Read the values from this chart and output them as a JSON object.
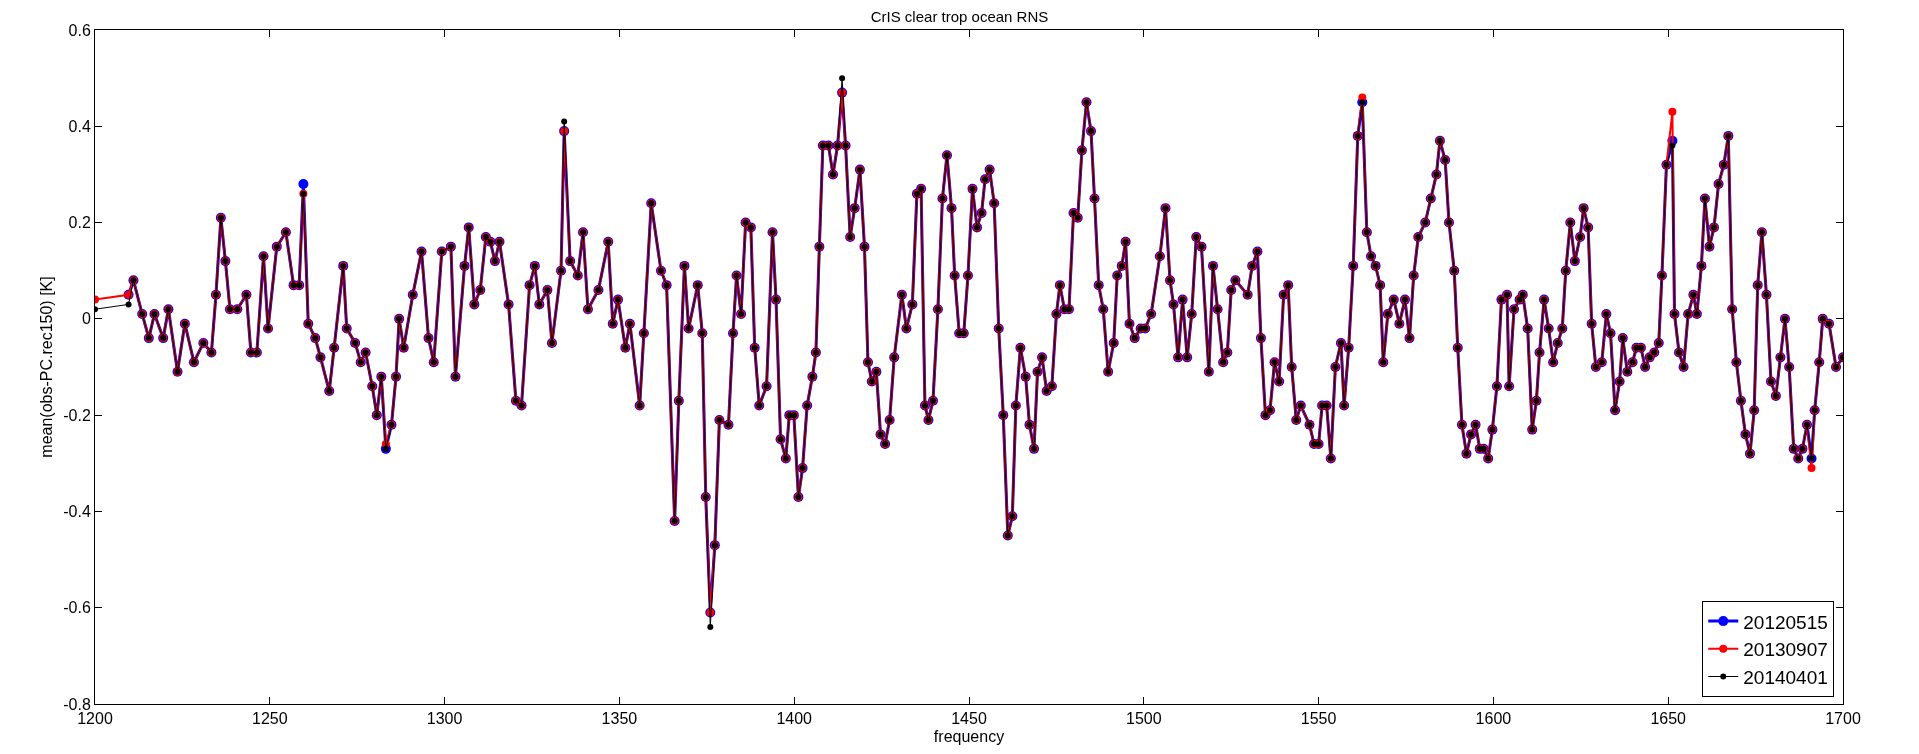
{
  "chart_data": {
    "type": "line",
    "title": "CrIS clear trop ocean RNS",
    "xlabel": "frequency",
    "ylabel": "mean(obs-PC.rec150) [K]",
    "xlim": [
      1200,
      1700
    ],
    "xticks": [
      1200,
      1250,
      1300,
      1350,
      1400,
      1450,
      1500,
      1550,
      1600,
      1650,
      1700
    ],
    "ylim": [
      -0.8,
      0.6
    ],
    "yticks": [
      -0.8,
      -0.6,
      -0.4,
      -0.2,
      0,
      0.2,
      0.4,
      0.6
    ],
    "grid": false,
    "legend": "bottom right",
    "marker": "circle",
    "line_style": "solid",
    "x": [
      1200,
      1209.6,
      1211,
      1213.5,
      1215.4,
      1217,
      1219.5,
      1221,
      1223.6,
      1225.7,
      1228.3,
      1231,
      1233.3,
      1234.6,
      1236,
      1237.3,
      1238.6,
      1240.7,
      1243.3,
      1244.6,
      1246.3,
      1248.2,
      1249.5,
      1252,
      1254.6,
      1256.8,
      1258.4,
      1259.6,
      1261,
      1263,
      1264.5,
      1267,
      1268.4,
      1271,
      1272,
      1274.4,
      1276,
      1277.4,
      1279.3,
      1280.6,
      1281.9,
      1283.2,
      1284.8,
      1286.1,
      1287,
      1288.3,
      1290.9,
      1293.4,
      1295.4,
      1296.9,
      1299.2,
      1301.8,
      1303.1,
      1305.7,
      1306.9,
      1308.5,
      1310.2,
      1311.8,
      1313.1,
      1314.4,
      1315.7,
      1318.3,
      1320.4,
      1322,
      1324.3,
      1325.8,
      1327.1,
      1329.4,
      1330.7,
      1333.3,
      1334.2,
      1335.9,
      1338.1,
      1339.6,
      1341,
      1344,
      1346.8,
      1348.1,
      1349.6,
      1351.7,
      1353,
      1355.8,
      1357,
      1359.1,
      1361.9,
      1363.5,
      1365.8,
      1367,
      1368.6,
      1369.8,
      1372.4,
      1373.7,
      1374.7,
      1376,
      1377.3,
      1378.6,
      1381.2,
      1382.5,
      1383.5,
      1384.8,
      1386.1,
      1387.6,
      1388.7,
      1390,
      1392.1,
      1393.8,
      1394.8,
      1396.1,
      1397.6,
      1398.6,
      1399.9,
      1401.2,
      1402.4,
      1403.7,
      1405.2,
      1406.2,
      1407.2,
      1408.2,
      1409.8,
      1411.1,
      1412.4,
      1413.7,
      1414.7,
      1416,
      1417.3,
      1418.8,
      1420.1,
      1421.1,
      1422.2,
      1423.5,
      1424.7,
      1426,
      1427.3,
      1428.6,
      1430.8,
      1432.1,
      1433.8,
      1435.1,
      1436.3,
      1437.4,
      1438.4,
      1439.7,
      1441.1,
      1442.4,
      1443.7,
      1445,
      1445.9,
      1447.2,
      1448.5,
      1449.7,
      1451,
      1452.3,
      1453.6,
      1454.6,
      1455.9,
      1457.2,
      1458.5,
      1459.8,
      1461.1,
      1462.4,
      1463.4,
      1464.7,
      1466.2,
      1467.3,
      1468.6,
      1469.6,
      1470.9,
      1472.2,
      1473.7,
      1475,
      1476,
      1477.3,
      1478.6,
      1479.9,
      1481.1,
      1482.3,
      1483.6,
      1484.9,
      1485.9,
      1487.1,
      1488.4,
      1489.8,
      1491.4,
      1492.4,
      1493.7,
      1494.8,
      1495.9,
      1497.4,
      1499.1,
      1500.4,
      1502.1,
      1504.6,
      1506.2,
      1507.5,
      1508.5,
      1509.8,
      1511.1,
      1512.4,
      1513.7,
      1515,
      1516.5,
      1518.6,
      1519.8,
      1521.1,
      1522.7,
      1523.9,
      1525,
      1526.2,
      1529.7,
      1531,
      1532.5,
      1533.5,
      1534.8,
      1536.1,
      1537.4,
      1538.7,
      1540,
      1541.3,
      1542.3,
      1543.6,
      1544.9,
      1547.4,
      1548.7,
      1550,
      1551,
      1552.3,
      1553.5,
      1554.8,
      1556.4,
      1557.3,
      1558.6,
      1559.9,
      1561.2,
      1562.5,
      1563.8,
      1565,
      1566.3,
      1567.6,
      1568.5,
      1569.8,
      1571.5,
      1573.1,
      1574.7,
      1576,
      1577.2,
      1578.5,
      1580.5,
      1582.1,
      1583.7,
      1584.7,
      1586.2,
      1587.3,
      1588.8,
      1589.8,
      1591,
      1592.3,
      1593.6,
      1594.9,
      1596.1,
      1597.2,
      1598.5,
      1599.7,
      1601,
      1602.3,
      1603.9,
      1604.5,
      1605.9,
      1607.5,
      1608.4,
      1609.8,
      1611.1,
      1612.3,
      1613.2,
      1614.5,
      1615.8,
      1617.1,
      1618.4,
      1619.7,
      1620.7,
      1622,
      1623.3,
      1624.8,
      1625.8,
      1627.1,
      1628.1,
      1629.3,
      1631,
      1632.3,
      1633.5,
      1634.8,
      1636.1,
      1637,
      1638.3,
      1639.8,
      1640.9,
      1642.2,
      1643.4,
      1644.7,
      1646,
      1647.3,
      1648.2,
      1649.5,
      1651.2,
      1651.8,
      1653.1,
      1654.4,
      1655.7,
      1657.2,
      1658.2,
      1659.5,
      1660.5,
      1661.8,
      1663.1,
      1664.4,
      1665.9,
      1667.2,
      1668.3,
      1669.5,
      1670.8,
      1672.1,
      1673.4,
      1674.6,
      1675.6,
      1676.8,
      1678.1,
      1679.4,
      1680.8,
      1682.1,
      1683.4,
      1684.6,
      1685.9,
      1687.2,
      1688.4,
      1689.7,
      1691,
      1691.9,
      1693.2,
      1694.2,
      1696,
      1698,
      1700
    ],
    "series": [
      {
        "name": "20120515",
        "color": "#0000ff",
        "values": [
          null,
          0.05,
          0.08,
          0.01,
          -0.04,
          0.01,
          -0.04,
          0.02,
          -0.11,
          -0.01,
          -0.09,
          -0.05,
          -0.07,
          0.05,
          0.21,
          0.12,
          0.02,
          0.02,
          0.05,
          -0.07,
          -0.07,
          0.13,
          -0.02,
          0.15,
          0.18,
          0.07,
          0.07,
          0.28,
          -0.01,
          -0.04,
          -0.08,
          -0.15,
          -0.06,
          0.11,
          -0.02,
          -0.05,
          -0.09,
          -0.07,
          -0.14,
          -0.2,
          -0.12,
          -0.27,
          -0.22,
          -0.12,
          0.0,
          -0.06,
          0.05,
          0.14,
          -0.04,
          -0.09,
          0.14,
          0.15,
          -0.12,
          0.11,
          0.19,
          0.03,
          0.06,
          0.17,
          0.16,
          0.12,
          0.16,
          0.03,
          -0.17,
          -0.18,
          0.07,
          0.11,
          0.03,
          0.06,
          -0.05,
          0.1,
          0.39,
          0.12,
          0.09,
          0.18,
          0.02,
          0.06,
          0.16,
          -0.01,
          0.04,
          -0.06,
          -0.01,
          -0.18,
          -0.03,
          0.24,
          0.1,
          0.07,
          -0.42,
          -0.17,
          0.11,
          -0.02,
          0.07,
          -0.03,
          -0.37,
          -0.61,
          -0.47,
          -0.21,
          -0.22,
          -0.03,
          0.09,
          0.01,
          0.2,
          0.19,
          -0.06,
          -0.18,
          -0.14,
          0.18,
          0.04,
          -0.25,
          -0.29,
          -0.2,
          -0.2,
          -0.37,
          -0.31,
          -0.18,
          -0.12,
          -0.07,
          0.15,
          0.36,
          0.36,
          0.3,
          0.36,
          0.47,
          0.36,
          0.17,
          0.23,
          0.31,
          0.15,
          -0.09,
          -0.13,
          -0.11,
          -0.24,
          -0.26,
          -0.21,
          -0.08,
          0.05,
          -0.02,
          0.03,
          0.26,
          0.27,
          -0.18,
          -0.21,
          -0.17,
          0.02,
          0.25,
          0.34,
          0.23,
          0.09,
          -0.03,
          -0.03,
          0.09,
          0.27,
          0.19,
          0.22,
          0.29,
          0.31,
          0.24,
          -0.02,
          -0.2,
          -0.45,
          -0.41,
          -0.18,
          -0.06,
          -0.12,
          -0.22,
          -0.27,
          -0.11,
          -0.08,
          -0.15,
          -0.14,
          0.01,
          0.07,
          0.02,
          0.02,
          0.22,
          0.21,
          0.35,
          0.45,
          0.39,
          0.25,
          0.07,
          0.02,
          -0.11,
          -0.05,
          0.09,
          0.11,
          0.16,
          -0.01,
          -0.04,
          -0.02,
          -0.02,
          0.01,
          0.13,
          0.23,
          0.08,
          0.03,
          -0.08,
          0.04,
          -0.08,
          0.01,
          0.17,
          0.15,
          -0.11,
          0.11,
          0.02,
          -0.09,
          -0.07,
          0.06,
          0.08,
          0.05,
          0.11,
          0.14,
          -0.04,
          -0.2,
          -0.19,
          -0.09,
          -0.13,
          0.05,
          0.07,
          -0.1,
          -0.21,
          -0.18,
          -0.22,
          -0.26,
          -0.26,
          -0.18,
          -0.18,
          -0.29,
          -0.1,
          -0.05,
          -0.18,
          -0.06,
          0.11,
          0.38,
          0.45,
          0.18,
          0.13,
          0.11,
          0.07,
          -0.09,
          0.01,
          0.04,
          -0.01,
          0.04,
          -0.04,
          0.09,
          0.17,
          0.2,
          0.25,
          0.3,
          0.37,
          0.33,
          0.2,
          0.1,
          -0.06,
          -0.22,
          -0.28,
          -0.24,
          -0.22,
          -0.27,
          -0.27,
          -0.29,
          -0.23,
          -0.14,
          0.04,
          0.05,
          -0.14,
          0.02,
          0.04,
          0.05,
          -0.02,
          -0.23,
          -0.17,
          -0.07,
          0.04,
          -0.02,
          -0.09,
          -0.05,
          -0.02,
          0.1,
          0.2,
          0.12,
          0.17,
          0.23,
          0.19,
          -0.01,
          -0.1,
          -0.09,
          0.01,
          -0.03,
          -0.19,
          -0.13,
          -0.04,
          -0.11,
          -0.09,
          -0.06,
          -0.06,
          -0.1,
          -0.08,
          -0.07,
          -0.05,
          0.09,
          0.32,
          0.37,
          0.01,
          -0.07,
          -0.1,
          0.01,
          0.05,
          0.01,
          0.11,
          0.25,
          0.15,
          0.19,
          0.28,
          0.32,
          0.38,
          0.02,
          -0.09,
          -0.17,
          -0.24,
          -0.28,
          -0.19,
          0.07,
          0.18,
          0.05,
          -0.13,
          -0.16,
          -0.08,
          0.0,
          -0.1,
          -0.27,
          -0.29,
          -0.27,
          -0.22,
          -0.29,
          -0.19,
          -0.09,
          0.0,
          -0.01,
          -0.1,
          -0.08
        ]
      },
      {
        "name": "20130907",
        "color": "#ff0000",
        "values": [
          0.04,
          0.05,
          0.08,
          0.01,
          -0.04,
          0.01,
          -0.04,
          0.02,
          -0.11,
          -0.01,
          -0.09,
          -0.05,
          -0.07,
          0.05,
          0.21,
          0.12,
          0.02,
          0.02,
          0.05,
          -0.07,
          -0.07,
          0.13,
          -0.02,
          0.15,
          0.18,
          0.07,
          0.07,
          0.26,
          -0.01,
          -0.04,
          -0.08,
          -0.15,
          -0.06,
          0.11,
          -0.02,
          -0.05,
          -0.09,
          -0.07,
          -0.14,
          -0.2,
          -0.12,
          -0.26,
          -0.22,
          -0.12,
          0.0,
          -0.06,
          0.05,
          0.14,
          -0.04,
          -0.09,
          0.14,
          0.15,
          -0.12,
          0.11,
          0.19,
          0.03,
          0.06,
          0.17,
          0.16,
          0.12,
          0.16,
          0.03,
          -0.17,
          -0.18,
          0.07,
          0.11,
          0.03,
          0.06,
          -0.05,
          0.1,
          0.39,
          0.12,
          0.09,
          0.18,
          0.02,
          0.06,
          0.16,
          -0.01,
          0.04,
          -0.06,
          -0.01,
          -0.18,
          -0.03,
          0.24,
          0.1,
          0.07,
          -0.42,
          -0.17,
          0.11,
          -0.02,
          0.07,
          -0.03,
          -0.37,
          -0.61,
          -0.47,
          -0.21,
          -0.22,
          -0.03,
          0.09,
          0.01,
          0.2,
          0.19,
          -0.06,
          -0.18,
          -0.14,
          0.18,
          0.04,
          -0.25,
          -0.29,
          -0.2,
          -0.2,
          -0.37,
          -0.31,
          -0.18,
          -0.12,
          -0.07,
          0.15,
          0.36,
          0.36,
          0.3,
          0.36,
          0.47,
          0.36,
          0.17,
          0.23,
          0.31,
          0.15,
          -0.09,
          -0.13,
          -0.11,
          -0.24,
          -0.26,
          -0.21,
          -0.08,
          0.05,
          -0.02,
          0.03,
          0.26,
          0.27,
          -0.18,
          -0.21,
          -0.17,
          0.02,
          0.25,
          0.34,
          0.23,
          0.09,
          -0.03,
          -0.03,
          0.09,
          0.27,
          0.19,
          0.22,
          0.29,
          0.31,
          0.24,
          -0.02,
          -0.2,
          -0.45,
          -0.41,
          -0.18,
          -0.06,
          -0.12,
          -0.22,
          -0.27,
          -0.11,
          -0.08,
          -0.15,
          -0.14,
          0.01,
          0.07,
          0.02,
          0.02,
          0.22,
          0.21,
          0.35,
          0.45,
          0.39,
          0.25,
          0.07,
          0.02,
          -0.11,
          -0.05,
          0.09,
          0.11,
          0.16,
          -0.01,
          -0.04,
          -0.02,
          -0.02,
          0.01,
          0.13,
          0.23,
          0.08,
          0.03,
          -0.08,
          0.04,
          -0.08,
          0.01,
          0.17,
          0.15,
          -0.11,
          0.11,
          0.02,
          -0.09,
          -0.07,
          0.06,
          0.08,
          0.05,
          0.11,
          0.14,
          -0.04,
          -0.2,
          -0.19,
          -0.09,
          -0.13,
          0.05,
          0.07,
          -0.1,
          -0.21,
          -0.18,
          -0.22,
          -0.26,
          -0.26,
          -0.18,
          -0.18,
          -0.29,
          -0.1,
          -0.05,
          -0.18,
          -0.06,
          0.11,
          0.38,
          0.46,
          0.18,
          0.13,
          0.11,
          0.07,
          -0.09,
          0.01,
          0.04,
          -0.01,
          0.04,
          -0.04,
          0.09,
          0.17,
          0.2,
          0.25,
          0.3,
          0.37,
          0.33,
          0.2,
          0.1,
          -0.06,
          -0.22,
          -0.28,
          -0.24,
          -0.22,
          -0.27,
          -0.27,
          -0.29,
          -0.23,
          -0.14,
          0.04,
          0.05,
          -0.14,
          0.02,
          0.04,
          0.05,
          -0.02,
          -0.23,
          -0.17,
          -0.07,
          0.04,
          -0.02,
          -0.09,
          -0.05,
          -0.02,
          0.1,
          0.2,
          0.12,
          0.17,
          0.23,
          0.19,
          -0.01,
          -0.1,
          -0.09,
          0.01,
          -0.03,
          -0.19,
          -0.13,
          -0.04,
          -0.11,
          -0.09,
          -0.06,
          -0.06,
          -0.1,
          -0.08,
          -0.07,
          -0.05,
          0.09,
          0.32,
          0.43,
          0.01,
          -0.07,
          -0.1,
          0.01,
          0.05,
          0.01,
          0.11,
          0.25,
          0.15,
          0.19,
          0.28,
          0.32,
          0.38,
          0.02,
          -0.09,
          -0.17,
          -0.24,
          -0.28,
          -0.19,
          0.07,
          0.18,
          0.05,
          -0.13,
          -0.16,
          -0.08,
          0.0,
          -0.1,
          -0.27,
          -0.29,
          -0.27,
          -0.22,
          -0.31,
          -0.19,
          -0.09,
          0.0,
          -0.01,
          -0.1,
          -0.08
        ]
      },
      {
        "name": "20140401",
        "color": "#000000",
        "values": [
          0.02,
          0.03,
          0.08,
          0.01,
          -0.04,
          0.01,
          -0.04,
          0.02,
          -0.11,
          -0.01,
          -0.09,
          -0.05,
          -0.07,
          0.05,
          0.21,
          0.12,
          0.02,
          0.02,
          0.05,
          -0.07,
          -0.07,
          0.13,
          -0.02,
          0.15,
          0.18,
          0.07,
          0.07,
          0.26,
          -0.01,
          -0.04,
          -0.08,
          -0.15,
          -0.06,
          0.11,
          -0.02,
          -0.05,
          -0.09,
          -0.07,
          -0.14,
          -0.2,
          -0.12,
          -0.27,
          -0.22,
          -0.12,
          0.0,
          -0.06,
          0.05,
          0.14,
          -0.04,
          -0.09,
          0.14,
          0.15,
          -0.12,
          0.11,
          0.19,
          0.03,
          0.06,
          0.17,
          0.16,
          0.12,
          0.16,
          0.03,
          -0.17,
          -0.18,
          0.07,
          0.11,
          0.03,
          0.06,
          -0.05,
          0.1,
          0.41,
          0.12,
          0.09,
          0.18,
          0.02,
          0.06,
          0.16,
          -0.01,
          0.04,
          -0.06,
          -0.01,
          -0.18,
          -0.03,
          0.24,
          0.1,
          0.07,
          -0.42,
          -0.17,
          0.11,
          -0.02,
          0.07,
          -0.03,
          -0.37,
          -0.64,
          -0.47,
          -0.21,
          -0.22,
          -0.03,
          0.09,
          0.01,
          0.2,
          0.19,
          -0.06,
          -0.18,
          -0.14,
          0.18,
          0.04,
          -0.25,
          -0.29,
          -0.2,
          -0.2,
          -0.37,
          -0.31,
          -0.18,
          -0.12,
          -0.07,
          0.15,
          0.36,
          0.36,
          0.3,
          0.36,
          0.5,
          0.36,
          0.17,
          0.23,
          0.31,
          0.15,
          -0.09,
          -0.13,
          -0.11,
          -0.24,
          -0.26,
          -0.21,
          -0.08,
          0.05,
          -0.02,
          0.03,
          0.26,
          0.27,
          -0.18,
          -0.21,
          -0.17,
          0.02,
          0.25,
          0.34,
          0.23,
          0.09,
          -0.03,
          -0.03,
          0.09,
          0.27,
          0.19,
          0.22,
          0.29,
          0.31,
          0.24,
          -0.02,
          -0.2,
          -0.45,
          -0.41,
          -0.18,
          -0.06,
          -0.12,
          -0.22,
          -0.27,
          -0.11,
          -0.08,
          -0.15,
          -0.14,
          0.01,
          0.07,
          0.02,
          0.02,
          0.22,
          0.21,
          0.35,
          0.45,
          0.39,
          0.25,
          0.07,
          0.02,
          -0.11,
          -0.05,
          0.09,
          0.11,
          0.16,
          -0.01,
          -0.04,
          -0.02,
          -0.02,
          0.01,
          0.13,
          0.23,
          0.08,
          0.03,
          -0.08,
          0.04,
          -0.08,
          0.01,
          0.17,
          0.15,
          -0.11,
          0.11,
          0.02,
          -0.09,
          -0.07,
          0.06,
          0.08,
          0.05,
          0.11,
          0.14,
          -0.04,
          -0.2,
          -0.19,
          -0.09,
          -0.13,
          0.05,
          0.07,
          -0.1,
          -0.21,
          -0.18,
          -0.22,
          -0.26,
          -0.26,
          -0.18,
          -0.18,
          -0.29,
          -0.1,
          -0.05,
          -0.18,
          -0.06,
          0.11,
          0.38,
          0.45,
          0.18,
          0.13,
          0.11,
          0.07,
          -0.09,
          0.01,
          0.04,
          -0.01,
          0.04,
          -0.04,
          0.09,
          0.17,
          0.2,
          0.25,
          0.3,
          0.37,
          0.33,
          0.2,
          0.1,
          -0.06,
          -0.22,
          -0.28,
          -0.24,
          -0.22,
          -0.27,
          -0.27,
          -0.29,
          -0.23,
          -0.14,
          0.04,
          0.05,
          -0.14,
          0.02,
          0.04,
          0.05,
          -0.02,
          -0.23,
          -0.17,
          -0.07,
          0.04,
          -0.02,
          -0.09,
          -0.05,
          -0.02,
          0.1,
          0.2,
          0.12,
          0.17,
          0.23,
          0.19,
          -0.01,
          -0.1,
          -0.09,
          0.01,
          -0.03,
          -0.19,
          -0.13,
          -0.04,
          -0.11,
          -0.09,
          -0.06,
          -0.06,
          -0.1,
          -0.08,
          -0.07,
          -0.05,
          0.09,
          0.32,
          0.36,
          0.01,
          -0.07,
          -0.1,
          0.01,
          0.05,
          0.01,
          0.11,
          0.25,
          0.15,
          0.19,
          0.28,
          0.32,
          0.38,
          0.02,
          -0.09,
          -0.17,
          -0.24,
          -0.28,
          -0.19,
          0.07,
          0.18,
          0.05,
          -0.13,
          -0.16,
          -0.08,
          0.0,
          -0.1,
          -0.27,
          -0.29,
          -0.27,
          -0.22,
          -0.29,
          -0.19,
          -0.09,
          0.0,
          -0.01,
          -0.1,
          -0.08
        ]
      }
    ]
  }
}
